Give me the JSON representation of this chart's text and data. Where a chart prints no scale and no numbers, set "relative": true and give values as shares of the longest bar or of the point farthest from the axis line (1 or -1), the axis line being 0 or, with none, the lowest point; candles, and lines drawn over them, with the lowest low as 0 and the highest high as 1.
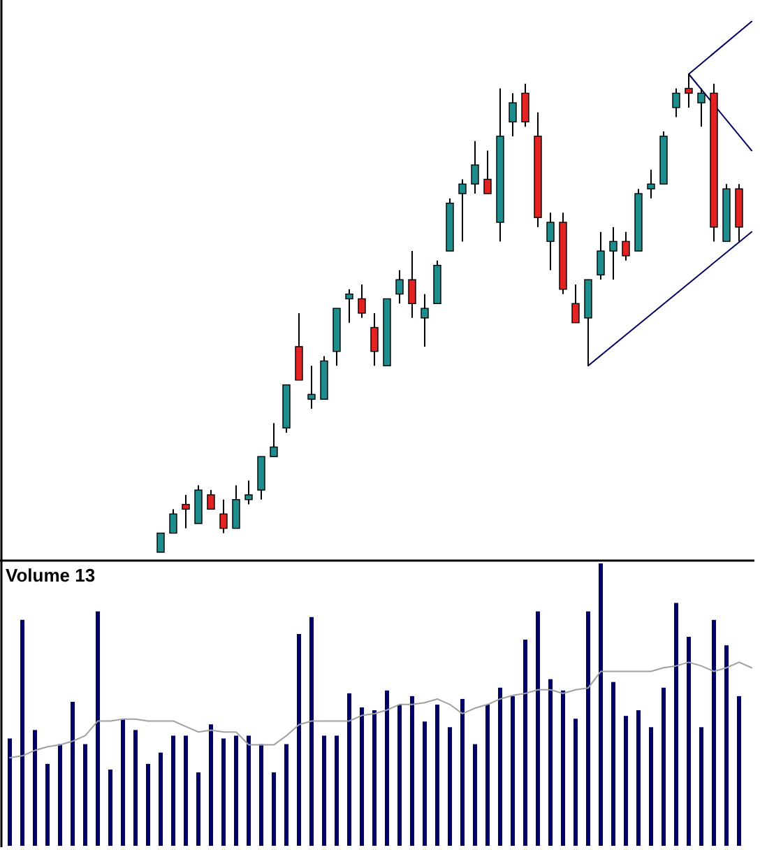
{
  "chart_data": [
    {
      "type": "candlestick",
      "relative": true,
      "categories": [
        null,
        null,
        null,
        null,
        null,
        null,
        null,
        null,
        null,
        null,
        null,
        null,
        null,
        null,
        null,
        null,
        null,
        null,
        null,
        null,
        null,
        null,
        null,
        null,
        null,
        null,
        null,
        null,
        null,
        null,
        null,
        null,
        null,
        null,
        null,
        null,
        null,
        null,
        null,
        null,
        null,
        null,
        null,
        null,
        null,
        null,
        null,
        null,
        null,
        null,
        null,
        null,
        null,
        null,
        null,
        null,
        null,
        null,
        null,
        null
      ],
      "ohlc": [
        null,
        null,
        null,
        null,
        null,
        null,
        null,
        null,
        null,
        null,
        null,
        null,
        [
          0,
          0.04,
          0,
          0.04
        ],
        [
          0.04,
          0.09,
          0.04,
          0.08
        ],
        [
          0.1,
          0.12,
          0.05,
          0.09
        ],
        [
          0.06,
          0.14,
          0.06,
          0.13
        ],
        [
          0.12,
          0.13,
          0.09,
          0.09
        ],
        [
          0.08,
          0.11,
          0.04,
          0.05
        ],
        [
          0.05,
          0.14,
          0.05,
          0.11
        ],
        [
          0.11,
          0.15,
          0.1,
          0.12
        ],
        [
          0.13,
          0.2,
          0.11,
          0.2
        ],
        [
          0.2,
          0.27,
          0.2,
          0.22
        ],
        [
          0.26,
          0.35,
          0.25,
          0.35
        ],
        [
          0.43,
          0.5,
          0.36,
          0.36
        ],
        [
          0.32,
          0.39,
          0.3,
          0.33
        ],
        [
          0.32,
          0.41,
          0.32,
          0.4
        ],
        [
          0.42,
          0.51,
          0.39,
          0.51
        ],
        [
          0.53,
          0.55,
          0.48,
          0.54
        ],
        [
          0.53,
          0.56,
          0.49,
          0.5
        ],
        [
          0.47,
          0.5,
          0.39,
          0.42
        ],
        [
          0.39,
          0.53,
          0.39,
          0.53
        ],
        [
          0.54,
          0.59,
          0.52,
          0.57
        ],
        [
          0.57,
          0.63,
          0.49,
          0.52
        ],
        [
          0.49,
          0.54,
          0.43,
          0.51
        ],
        [
          0.52,
          0.61,
          0.52,
          0.6
        ],
        [
          0.63,
          0.74,
          0.63,
          0.73
        ],
        [
          0.75,
          0.78,
          0.65,
          0.77
        ],
        [
          0.77,
          0.86,
          0.75,
          0.81
        ],
        [
          0.78,
          0.84,
          0.75,
          0.75
        ],
        [
          0.69,
          0.97,
          0.65,
          0.87
        ],
        [
          0.9,
          0.96,
          0.87,
          0.94
        ],
        [
          0.96,
          0.98,
          0.89,
          0.9
        ],
        [
          0.87,
          0.92,
          0.68,
          0.7
        ],
        [
          0.65,
          0.71,
          0.59,
          0.69
        ],
        [
          0.69,
          0.71,
          0.54,
          0.55
        ],
        [
          0.52,
          0.56,
          0.48,
          0.48
        ],
        [
          0.49,
          0.57,
          0.39,
          0.57
        ],
        [
          0.58,
          0.67,
          0.57,
          0.63
        ],
        [
          0.63,
          0.68,
          0.57,
          0.65
        ],
        [
          0.65,
          0.67,
          0.61,
          0.62
        ],
        [
          0.63,
          0.76,
          0.63,
          0.75
        ],
        [
          0.76,
          0.8,
          0.74,
          0.77
        ],
        [
          0.77,
          0.88,
          0.77,
          0.87
        ],
        [
          0.93,
          0.97,
          0.91,
          0.96
        ],
        [
          0.97,
          1,
          0.93,
          0.96
        ],
        [
          0.94,
          0.97,
          0.89,
          0.96
        ],
        [
          0.96,
          0.98,
          0.65,
          0.68
        ],
        [
          0.65,
          0.77,
          0.65,
          0.76
        ],
        [
          0.76,
          0.77,
          0.65,
          0.68
        ],
        null
      ],
      "series": [
        {
          "type": "line",
          "color": "#000060",
          "values": [
            null,
            null,
            null,
            null,
            null,
            null,
            null,
            null,
            null,
            null,
            null,
            null,
            null,
            null,
            null,
            null,
            null,
            null,
            null,
            null,
            null,
            null,
            null,
            null,
            null,
            null,
            null,
            null,
            null,
            null,
            null,
            null,
            null,
            null,
            null,
            null,
            null,
            null,
            null,
            null,
            null,
            null,
            null,
            null,
            null,
            null,
            0.39,
            null,
            null,
            null,
            null,
            null,
            null,
            null,
            null,
            null,
            null,
            null,
            null,
            0.67
          ]
        },
        {
          "type": "line",
          "color": "#000060",
          "values": [
            null,
            null,
            null,
            null,
            null,
            null,
            null,
            null,
            null,
            null,
            null,
            null,
            null,
            null,
            null,
            null,
            null,
            null,
            null,
            null,
            null,
            null,
            null,
            null,
            null,
            null,
            null,
            null,
            null,
            null,
            null,
            null,
            null,
            null,
            null,
            null,
            null,
            null,
            null,
            null,
            null,
            null,
            null,
            null,
            null,
            null,
            null,
            null,
            null,
            null,
            null,
            null,
            null,
            null,
            1,
            null,
            null,
            null,
            null,
            1.11
          ]
        },
        {
          "type": "line",
          "color": "#000060",
          "values": [
            null,
            null,
            null,
            null,
            null,
            null,
            null,
            null,
            null,
            null,
            null,
            null,
            null,
            null,
            null,
            null,
            null,
            null,
            null,
            null,
            null,
            null,
            null,
            null,
            null,
            null,
            null,
            null,
            null,
            null,
            null,
            null,
            null,
            null,
            null,
            null,
            null,
            null,
            null,
            null,
            null,
            null,
            null,
            null,
            null,
            null,
            null,
            null,
            null,
            null,
            null,
            null,
            null,
            null,
            1,
            null,
            null,
            null,
            null,
            0.84
          ]
        }
      ]
    },
    {
      "type": "bar",
      "title": "Volume 13",
      "relative": true,
      "categories": [
        null,
        null,
        null,
        null,
        null,
        null,
        null,
        null,
        null,
        null,
        null,
        null,
        null,
        null,
        null,
        null,
        null,
        null,
        null,
        null,
        null,
        null,
        null,
        null,
        null,
        null,
        null,
        null,
        null,
        null,
        null,
        null,
        null,
        null,
        null,
        null,
        null,
        null,
        null,
        null,
        null,
        null,
        null,
        null,
        null,
        null,
        null,
        null,
        null,
        null,
        null,
        null,
        null,
        null,
        null,
        null,
        null,
        null,
        null
      ],
      "series": [
        {
          "type": "bar",
          "color": "#000066",
          "values": [
            0.38,
            0.8,
            0.41,
            0.29,
            0.36,
            0.51,
            0.36,
            0.83,
            0.27,
            0.45,
            0.41,
            0.29,
            0.33,
            0.39,
            0.39,
            0.26,
            0.43,
            0.38,
            0.39,
            0.39,
            0.36,
            0.26,
            0.36,
            0.75,
            0.81,
            0.39,
            0.39,
            0.54,
            0.49,
            0.48,
            0.55,
            0.5,
            0.53,
            0.44,
            0.5,
            0.42,
            0.52,
            0.36,
            0.5,
            0.56,
            0.53,
            0.73,
            0.83,
            0.59,
            0.55,
            0.45,
            0.83,
            1,
            0.58,
            0.46,
            0.48,
            0.42,
            0.56,
            0.86,
            0.74,
            0.42,
            0.8,
            0.71,
            0.53
          ]
        }
      ]
    },
    {
      "type": "line",
      "relative": true,
      "categories": [
        null,
        null,
        null,
        null,
        null,
        null,
        null,
        null,
        null,
        null,
        null,
        null,
        null,
        null,
        null,
        null,
        null,
        null,
        null,
        null,
        null,
        null,
        null,
        null,
        null,
        null,
        null,
        null,
        null,
        null,
        null,
        null,
        null,
        null,
        null,
        null,
        null,
        null,
        null,
        null,
        null,
        null,
        null,
        null,
        null,
        null,
        null,
        null,
        null,
        null,
        null,
        null,
        null,
        null,
        null,
        null,
        null,
        null,
        null,
        null
      ],
      "series": [
        {
          "type": "line",
          "color": "#a0a0a0",
          "values": [
            0.48,
            0.49,
            0.52,
            0.54,
            0.55,
            0.57,
            0.6,
            0.68,
            0.68,
            0.69,
            0.69,
            0.68,
            0.68,
            0.68,
            0.65,
            0.62,
            0.63,
            0.62,
            0.62,
            0.55,
            0.55,
            0.55,
            0.6,
            0.66,
            0.68,
            0.68,
            0.68,
            0.68,
            0.71,
            0.72,
            0.74,
            0.77,
            0.77,
            0.78,
            0.8,
            0.77,
            0.72,
            0.75,
            0.77,
            0.8,
            0.82,
            0.83,
            0.85,
            0.85,
            0.83,
            0.85,
            0.86,
            0.95,
            0.95,
            0.95,
            0.95,
            0.95,
            0.97,
            0.98,
            1,
            0.98,
            0.95,
            0.97,
            1,
            0.97
          ]
        }
      ]
    }
  ]
}
